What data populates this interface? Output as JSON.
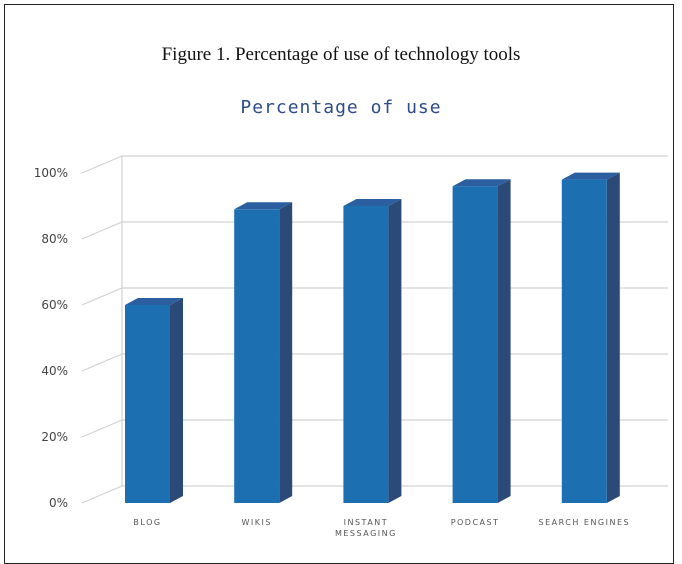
{
  "figure": {
    "caption": "Figure 1. Percentage of use of technology tools"
  },
  "chart_data": {
    "type": "bar",
    "title": "Percentage of use",
    "categories": [
      [
        "BLOG"
      ],
      [
        "WIKIS"
      ],
      [
        "INSTANT",
        "MESSAGING"
      ],
      [
        "PODCAST"
      ],
      [
        "SEARCH ENGINES"
      ]
    ],
    "values": [
      60,
      89,
      90,
      96,
      98
    ],
    "yticks": [
      "0%",
      "20%",
      "40%",
      "60%",
      "80%",
      "100%"
    ],
    "ylim": [
      0,
      100
    ],
    "grid": true,
    "colors": {
      "bar_front": "#1c6fb0",
      "bar_side": "#2c4a78",
      "bar_top": "#2b5fa0",
      "grid": "#d2d2d2"
    }
  }
}
